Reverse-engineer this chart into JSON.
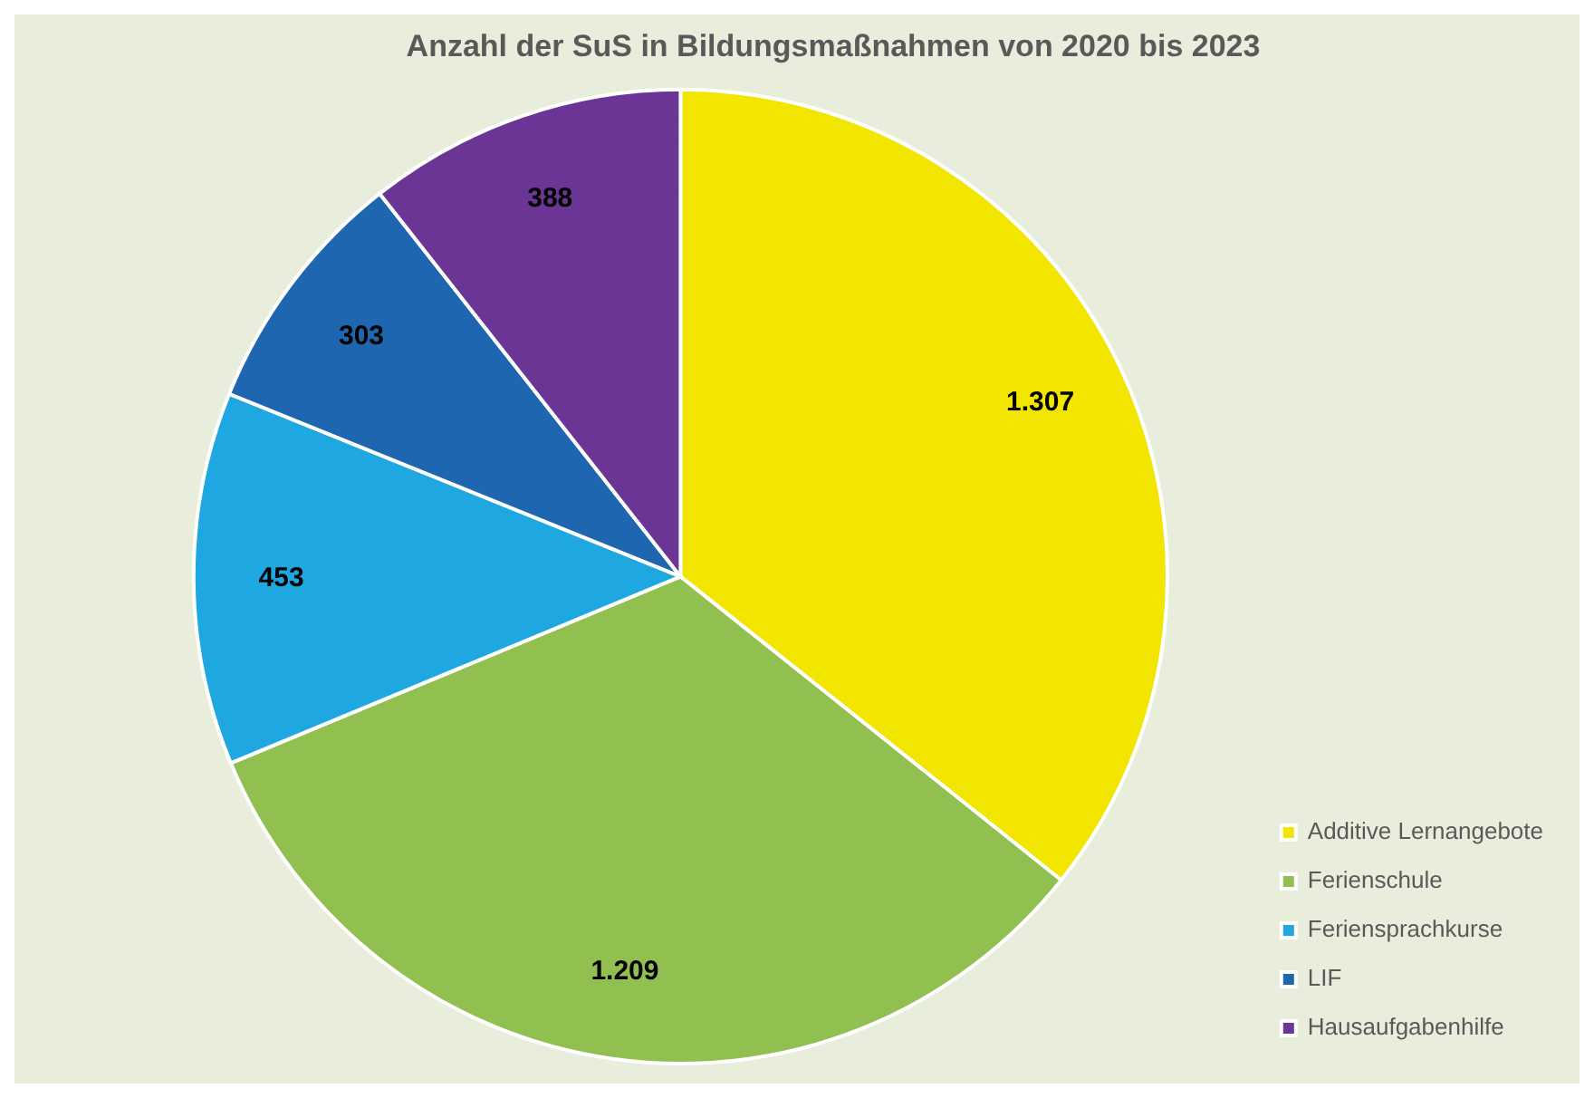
{
  "chart_data": {
    "type": "pie",
    "title": "Anzahl der SuS in Bildungsmaßnahmen von 2020 bis 2023",
    "categories": [
      "Additive Lernangebote",
      "Ferienschule",
      "Feriensprachkurse",
      "LIF",
      "Hausaufgabenhilfe"
    ],
    "values": [
      1307,
      1209,
      453,
      303,
      388
    ],
    "colors": [
      "#f2e500",
      "#92c050",
      "#1ea7e0",
      "#1f66b0",
      "#6a3595"
    ],
    "value_labels": [
      "1.307",
      "1.209",
      "453",
      "303",
      "388"
    ],
    "legend": "bottom right"
  }
}
